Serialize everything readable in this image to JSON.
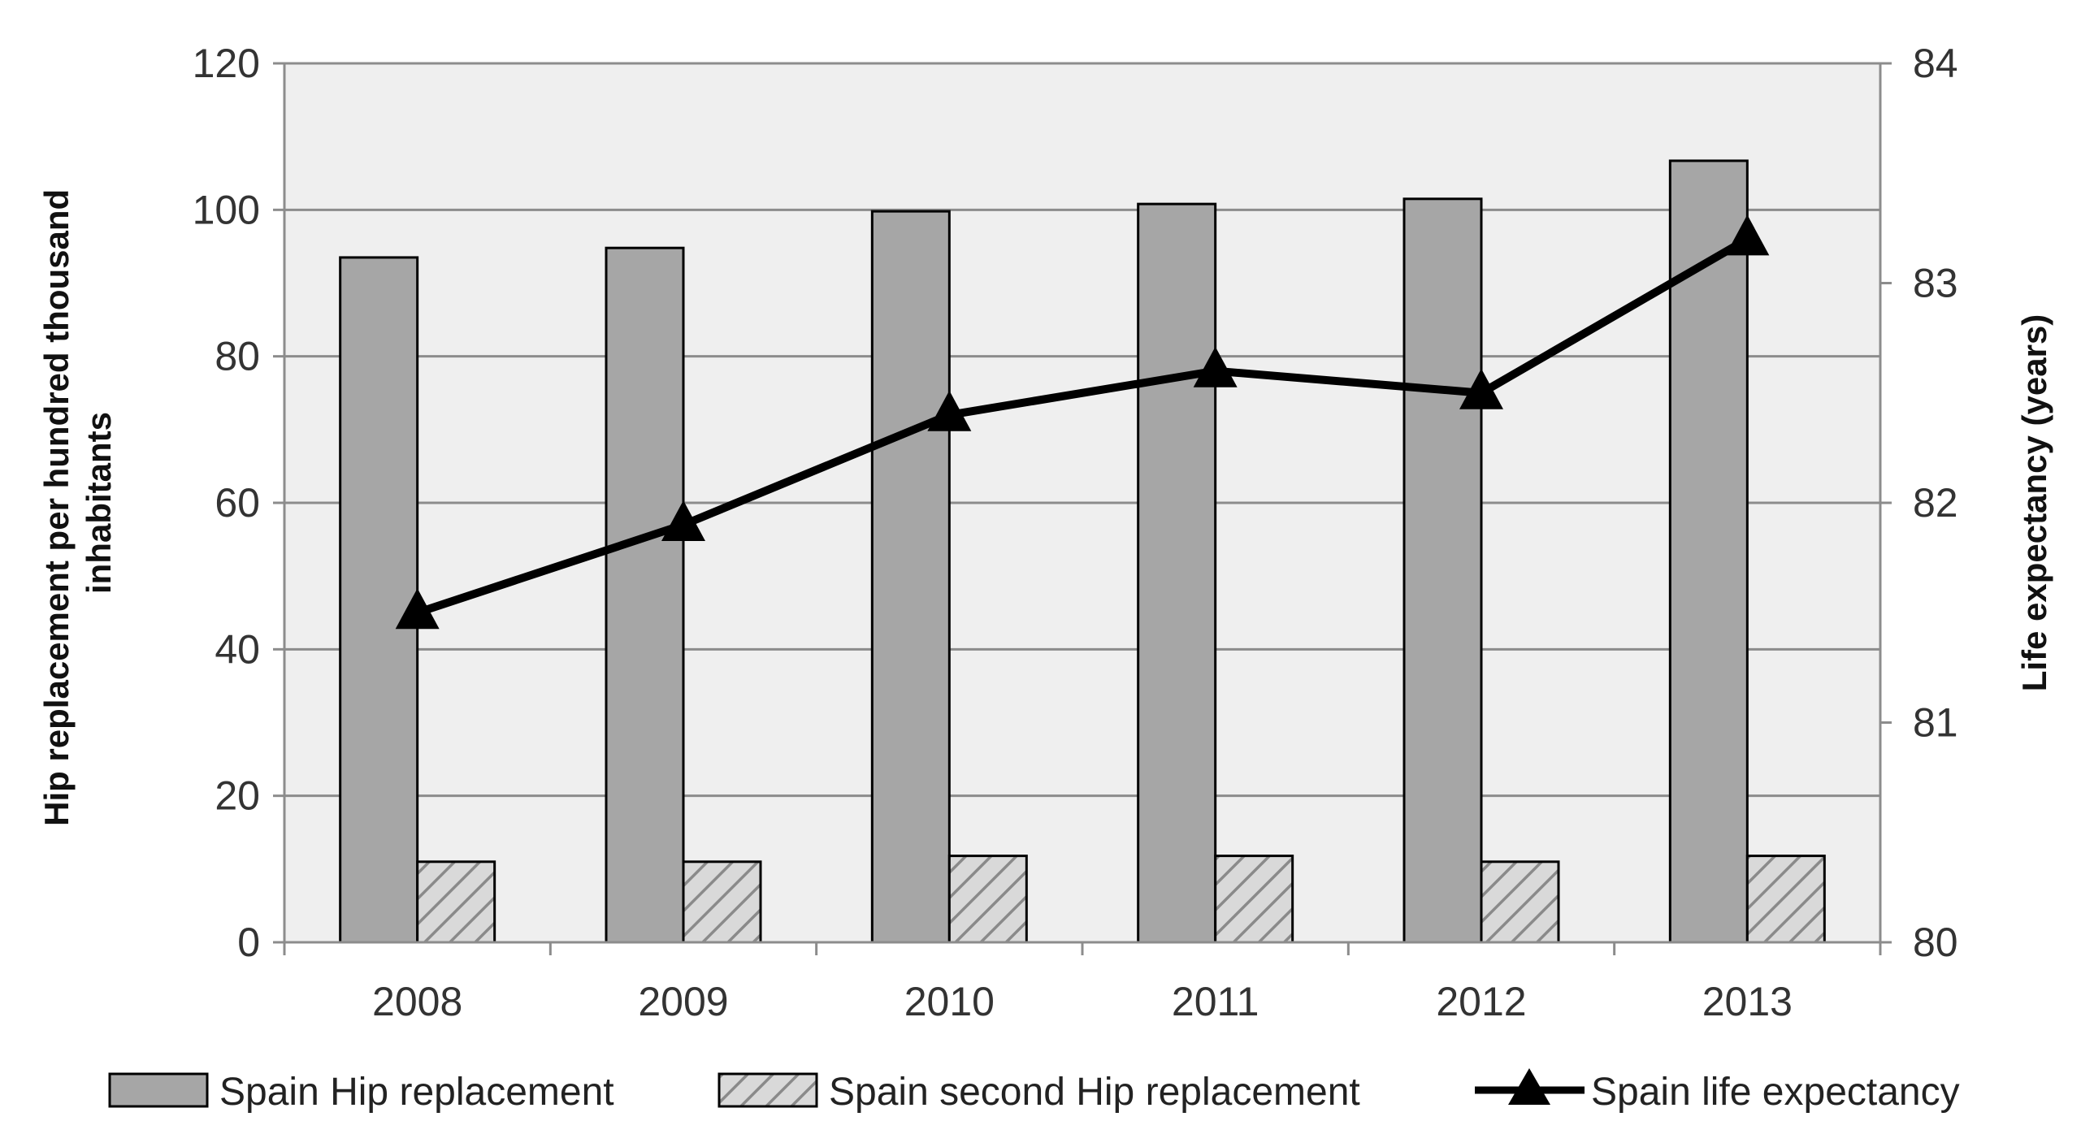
{
  "chart_data": {
    "type": "bar",
    "categories": [
      "2008",
      "2009",
      "2010",
      "2011",
      "2012",
      "2013"
    ],
    "series": [
      {
        "name": "Spain Hip replacement",
        "type": "bar",
        "axis": "left",
        "values": [
          93.5,
          94.8,
          99.8,
          100.8,
          101.5,
          106.7
        ]
      },
      {
        "name": "Spain second Hip replacement",
        "type": "bar",
        "axis": "left",
        "values": [
          11.0,
          11.0,
          11.8,
          11.8,
          11.0,
          11.8
        ]
      },
      {
        "name": "Spain life expectancy",
        "type": "line",
        "axis": "right",
        "values": [
          81.5,
          81.9,
          82.4,
          82.6,
          82.5,
          83.2
        ]
      }
    ],
    "y_left": {
      "label_lines": [
        "Hip replacement per hundred thousand",
        "inhabitants"
      ],
      "lim": [
        0,
        120
      ],
      "ticks": [
        "0",
        "20",
        "40",
        "60",
        "80",
        "100",
        "120"
      ]
    },
    "y_right": {
      "label": "Life expectancy (years)",
      "lim": [
        80,
        84
      ],
      "ticks": [
        "80",
        "81",
        "82",
        "83",
        "84"
      ]
    },
    "grid": true,
    "legend": "bottom",
    "colors": {
      "plot_bg": "#efefef",
      "grid": "#8c8c8c",
      "bar_primary": "#a6a6a6",
      "bar_hatch_bg": "#d9d9d9",
      "bar_hatch_line": "#8a8a8a",
      "line": "#000000"
    }
  }
}
